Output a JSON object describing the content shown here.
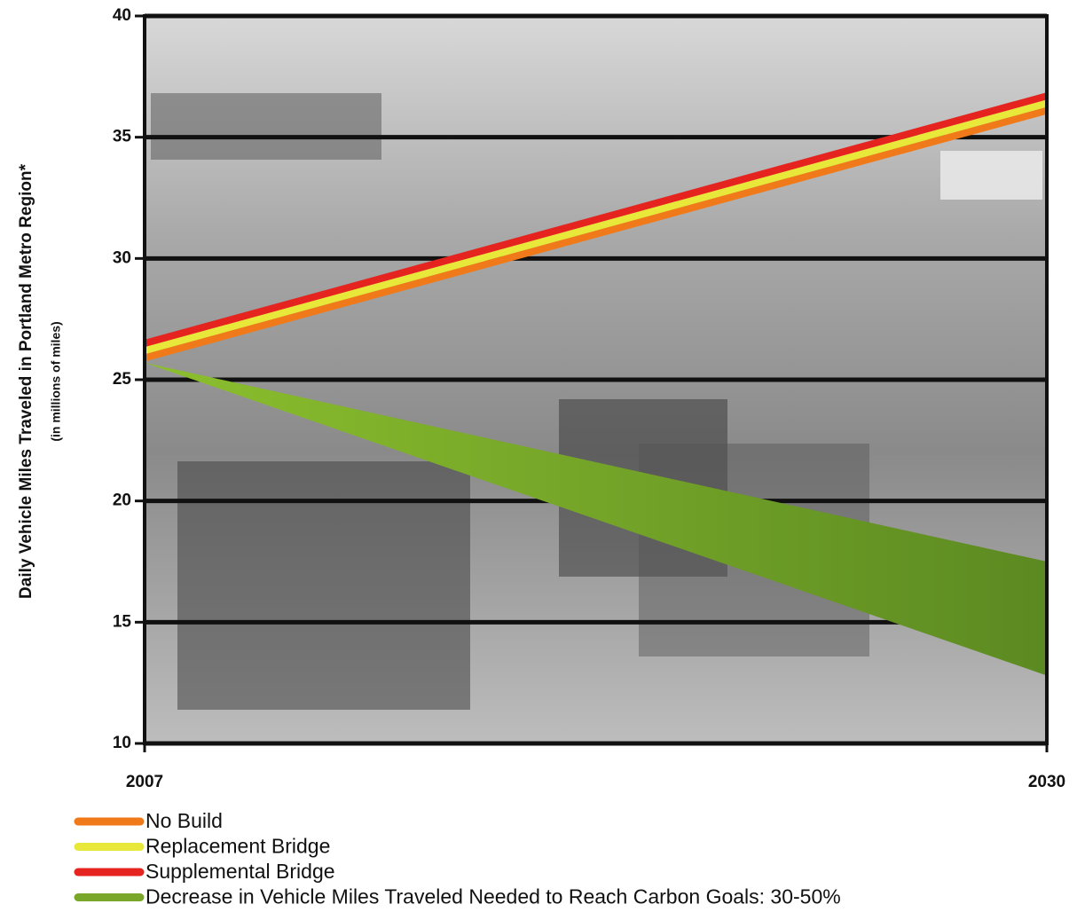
{
  "chart_data": {
    "type": "line",
    "y_label": "Daily Vehicle Miles Traveled in Portland Metro Region*",
    "y_sublabel": "(in millions of miles)",
    "x": [
      2007,
      2030
    ],
    "xlim": [
      2007,
      2030
    ],
    "xticks": [
      2007,
      2030
    ],
    "ylim": [
      10,
      40
    ],
    "yticks": [
      10,
      15,
      20,
      25,
      30,
      35,
      40
    ],
    "grid": true,
    "series": [
      {
        "name": "No Build",
        "color": "#f07a1a",
        "values": [
          25.9,
          36.1
        ]
      },
      {
        "name": "Replacement Bridge",
        "color": "#e8e83a",
        "values": [
          26.2,
          36.4
        ]
      },
      {
        "name": "Supplemental Bridge",
        "color": "#e5231f",
        "values": [
          26.5,
          36.7
        ]
      }
    ],
    "band": {
      "name": "Decrease in Vehicle Miles Traveled Needed to Reach Carbon Goals: 30-50%",
      "color": "#7aa62a",
      "upper": [
        25.7,
        17.5
      ],
      "lower": [
        25.7,
        12.8
      ]
    }
  }
}
